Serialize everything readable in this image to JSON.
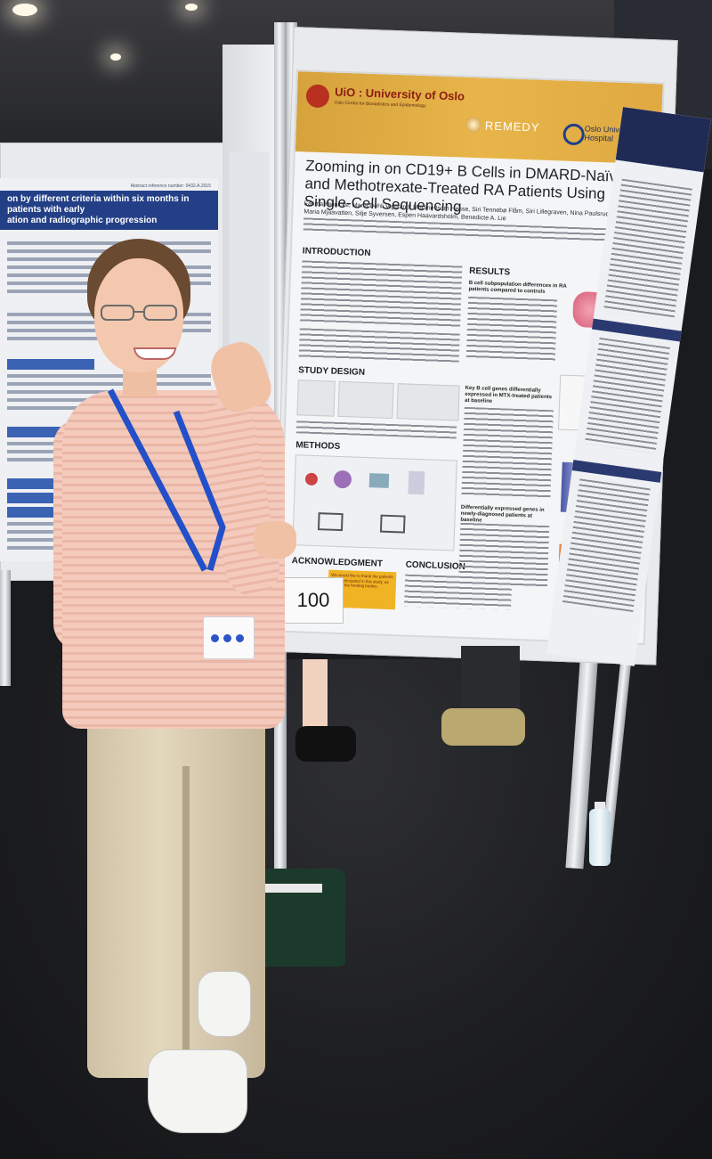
{
  "left_poster": {
    "title_fragment": "on by different criteria within six months in patients with early",
    "subtitle_fragment": "ation and radiographic progression",
    "abstract_ref": "Abstract reference number: 0432.A.2015"
  },
  "main_poster": {
    "logos": {
      "uio": "UiO : University of Oslo",
      "uio_sub": "Oslo Centre for Biostatistics and Epidemiology",
      "remedy": "REMEDY",
      "ous": "Oslo University Hospital"
    },
    "title": "Zooming in on CD19+ B Cells in DMARD-Naïve and Methotrexate-Treated RA Patients Using Single-Cell Sequencing",
    "authors": "Fatima Heinicke, Maria Dehli Vigeland, Martine Isom Hesse, Siri Tennebø Flåm, Siri Lillegraven, Nina Paulsrud Sundlisæter, Maria Mjaavatten, Silje Syversen, Espen Haavardsholm, Benedicte A. Lie",
    "sections": {
      "introduction": "INTRODUCTION",
      "study_design": "STUDY DESIGN",
      "methods": "METHODS",
      "results": "RESULTS",
      "results_sub1": "B cell subpopulation differences in RA patients compared to controls",
      "results_sub2": "Key B cell genes differentially expressed in MTX-treated patients at baseline",
      "results_sub3": "Differentially expressed genes in newly-diagnosed patients at baseline",
      "acknowledgment": "ACKNOWLEDGMENT",
      "conclusion": "CONCLUSION"
    },
    "ack_text": "We would like to thank the patients who participated in this study, as well as the funding bodies."
  },
  "number_card": "100"
}
